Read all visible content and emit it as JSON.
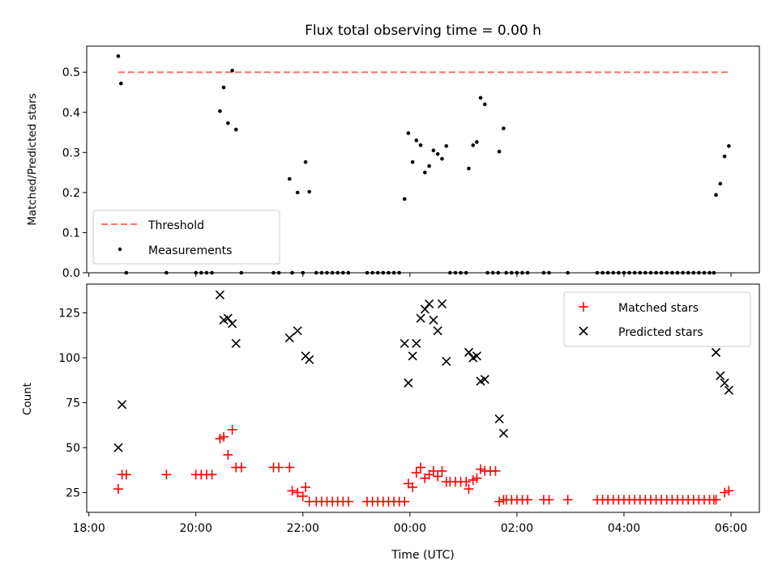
{
  "chart_data": [
    {
      "type": "scatter",
      "title": "Flux total observing time = 0.00 h",
      "xlabel": "",
      "ylabel": "Matched/Predicted stars",
      "ylim": [
        0,
        0.565
      ],
      "xlim": [
        -0.04,
        12.53
      ],
      "x_unit": "hours since 18:00 UTC",
      "yticks": [
        0.0,
        0.1,
        0.2,
        0.3,
        0.4,
        0.5
      ],
      "ytick_labels": [
        "0.0",
        "0.1",
        "0.2",
        "0.3",
        "0.4",
        "0.5"
      ],
      "xticks": [
        0,
        2,
        4,
        6,
        8,
        10,
        12
      ],
      "legend": {
        "location": "lower-left",
        "entries": [
          "Threshold",
          "Measurements"
        ]
      },
      "series": [
        {
          "name": "Threshold",
          "kind": "line",
          "style": "dashed",
          "color": "#ff7070",
          "x": [
            0.55,
            12.0
          ],
          "y": [
            0.5,
            0.5
          ]
        },
        {
          "name": "Measurements",
          "kind": "scatter",
          "color": "#000000",
          "points": [
            [
              0.55,
              0.54
            ],
            [
              0.6,
              0.472
            ],
            [
              0.7,
              0.0
            ],
            [
              1.45,
              0.0
            ],
            [
              2.0,
              0.0
            ],
            [
              2.1,
              0.0
            ],
            [
              2.2,
              0.0
            ],
            [
              2.3,
              0.0
            ],
            [
              2.45,
              0.403
            ],
            [
              2.52,
              0.462
            ],
            [
              2.6,
              0.373
            ],
            [
              2.68,
              0.504
            ],
            [
              2.75,
              0.357
            ],
            [
              2.85,
              0.0
            ],
            [
              3.45,
              0.0
            ],
            [
              3.55,
              0.0
            ],
            [
              3.75,
              0.234
            ],
            [
              3.9,
              0.2
            ],
            [
              4.05,
              0.276
            ],
            [
              4.12,
              0.202
            ],
            [
              3.8,
              0.0
            ],
            [
              4.0,
              0.0
            ],
            [
              4.25,
              0.0
            ],
            [
              4.35,
              0.0
            ],
            [
              4.45,
              0.0
            ],
            [
              4.55,
              0.0
            ],
            [
              4.65,
              0.0
            ],
            [
              4.75,
              0.0
            ],
            [
              4.85,
              0.0
            ],
            [
              5.2,
              0.0
            ],
            [
              5.3,
              0.0
            ],
            [
              5.4,
              0.0
            ],
            [
              5.5,
              0.0
            ],
            [
              5.6,
              0.0
            ],
            [
              5.7,
              0.0
            ],
            [
              5.8,
              0.0
            ],
            [
              5.9,
              0.184
            ],
            [
              5.97,
              0.348
            ],
            [
              6.05,
              0.276
            ],
            [
              6.12,
              0.33
            ],
            [
              6.2,
              0.318
            ],
            [
              6.28,
              0.25
            ],
            [
              6.36,
              0.266
            ],
            [
              6.44,
              0.305
            ],
            [
              6.52,
              0.296
            ],
            [
              6.6,
              0.284
            ],
            [
              6.68,
              0.316
            ],
            [
              6.75,
              0.0
            ],
            [
              6.85,
              0.0
            ],
            [
              6.95,
              0.0
            ],
            [
              7.05,
              0.0
            ],
            [
              7.1,
              0.26
            ],
            [
              7.18,
              0.318
            ],
            [
              7.25,
              0.326
            ],
            [
              7.32,
              0.436
            ],
            [
              7.4,
              0.42
            ],
            [
              7.45,
              0.0
            ],
            [
              7.55,
              0.0
            ],
            [
              7.65,
              0.0
            ],
            [
              7.67,
              0.302
            ],
            [
              7.75,
              0.36
            ],
            [
              7.8,
              0.0
            ],
            [
              7.9,
              0.0
            ],
            [
              8.0,
              0.0
            ],
            [
              8.1,
              0.0
            ],
            [
              8.2,
              0.0
            ],
            [
              8.5,
              0.0
            ],
            [
              8.6,
              0.0
            ],
            [
              8.95,
              0.0
            ],
            [
              9.5,
              0.0
            ],
            [
              9.6,
              0.0
            ],
            [
              9.7,
              0.0
            ],
            [
              9.8,
              0.0
            ],
            [
              9.9,
              0.0
            ],
            [
              10.0,
              0.0
            ],
            [
              10.1,
              0.0
            ],
            [
              10.2,
              0.0
            ],
            [
              10.3,
              0.0
            ],
            [
              10.4,
              0.0
            ],
            [
              10.5,
              0.0
            ],
            [
              10.6,
              0.0
            ],
            [
              10.7,
              0.0
            ],
            [
              10.8,
              0.0
            ],
            [
              10.9,
              0.0
            ],
            [
              11.0,
              0.0
            ],
            [
              11.1,
              0.0
            ],
            [
              11.2,
              0.0
            ],
            [
              11.3,
              0.0
            ],
            [
              11.4,
              0.0
            ],
            [
              11.5,
              0.0
            ],
            [
              11.6,
              0.0
            ],
            [
              11.68,
              0.0
            ],
            [
              11.72,
              0.194
            ],
            [
              11.8,
              0.222
            ],
            [
              11.88,
              0.29
            ],
            [
              11.96,
              0.316
            ]
          ]
        }
      ]
    },
    {
      "type": "scatter",
      "title": "",
      "xlabel": "Time (UTC)",
      "ylabel": "Count",
      "ylim": [
        14,
        141
      ],
      "xlim": [
        -0.04,
        12.53
      ],
      "x_unit": "hours since 18:00 UTC",
      "yticks": [
        25,
        50,
        75,
        100,
        125
      ],
      "ytick_labels": [
        "25",
        "50",
        "75",
        "100",
        "125"
      ],
      "xticks": [
        0,
        2,
        4,
        6,
        8,
        10,
        12
      ],
      "xtick_labels": [
        "18:00",
        "20:00",
        "22:00",
        "00:00",
        "02:00",
        "04:00",
        "06:00"
      ],
      "legend": {
        "location": "upper-right",
        "entries": [
          "Matched stars",
          "Predicted stars"
        ]
      },
      "series": [
        {
          "name": "Matched stars",
          "kind": "scatter",
          "marker": "plus",
          "color": "#ff0000",
          "points": [
            [
              0.55,
              27
            ],
            [
              0.62,
              35
            ],
            [
              0.7,
              35
            ],
            [
              1.45,
              35
            ],
            [
              2.0,
              35
            ],
            [
              2.1,
              35
            ],
            [
              2.2,
              35
            ],
            [
              2.3,
              35
            ],
            [
              2.45,
              55
            ],
            [
              2.52,
              56
            ],
            [
              2.6,
              46
            ],
            [
              2.68,
              60
            ],
            [
              2.75,
              39
            ],
            [
              2.85,
              39
            ],
            [
              3.45,
              39
            ],
            [
              3.55,
              39
            ],
            [
              3.75,
              39
            ],
            [
              3.8,
              26
            ],
            [
              3.9,
              25
            ],
            [
              4.0,
              23
            ],
            [
              4.05,
              28
            ],
            [
              4.12,
              20
            ],
            [
              4.25,
              20
            ],
            [
              4.35,
              20
            ],
            [
              4.45,
              20
            ],
            [
              4.55,
              20
            ],
            [
              4.65,
              20
            ],
            [
              4.75,
              20
            ],
            [
              4.85,
              20
            ],
            [
              5.2,
              20
            ],
            [
              5.3,
              20
            ],
            [
              5.4,
              20
            ],
            [
              5.5,
              20
            ],
            [
              5.6,
              20
            ],
            [
              5.7,
              20
            ],
            [
              5.8,
              20
            ],
            [
              5.9,
              20
            ],
            [
              5.97,
              30
            ],
            [
              6.05,
              28
            ],
            [
              6.12,
              36
            ],
            [
              6.2,
              39
            ],
            [
              6.28,
              33
            ],
            [
              6.36,
              35
            ],
            [
              6.44,
              37
            ],
            [
              6.52,
              34
            ],
            [
              6.6,
              37
            ],
            [
              6.68,
              31
            ],
            [
              6.75,
              31
            ],
            [
              6.85,
              31
            ],
            [
              6.95,
              31
            ],
            [
              7.05,
              31
            ],
            [
              7.1,
              27
            ],
            [
              7.18,
              32
            ],
            [
              7.25,
              33
            ],
            [
              7.32,
              38
            ],
            [
              7.4,
              37
            ],
            [
              7.5,
              37
            ],
            [
              7.6,
              37
            ],
            [
              7.67,
              20
            ],
            [
              7.75,
              21
            ],
            [
              7.8,
              21
            ],
            [
              7.9,
              21
            ],
            [
              8.0,
              21
            ],
            [
              8.1,
              21
            ],
            [
              8.2,
              21
            ],
            [
              8.5,
              21
            ],
            [
              8.6,
              21
            ],
            [
              8.95,
              21
            ],
            [
              9.5,
              21
            ],
            [
              9.6,
              21
            ],
            [
              9.7,
              21
            ],
            [
              9.8,
              21
            ],
            [
              9.9,
              21
            ],
            [
              10.0,
              21
            ],
            [
              10.1,
              21
            ],
            [
              10.2,
              21
            ],
            [
              10.3,
              21
            ],
            [
              10.4,
              21
            ],
            [
              10.5,
              21
            ],
            [
              10.6,
              21
            ],
            [
              10.7,
              21
            ],
            [
              10.8,
              21
            ],
            [
              10.9,
              21
            ],
            [
              11.0,
              21
            ],
            [
              11.1,
              21
            ],
            [
              11.2,
              21
            ],
            [
              11.3,
              21
            ],
            [
              11.4,
              21
            ],
            [
              11.5,
              21
            ],
            [
              11.6,
              21
            ],
            [
              11.68,
              21
            ],
            [
              11.72,
              21
            ],
            [
              11.88,
              25
            ],
            [
              11.96,
              26
            ]
          ]
        },
        {
          "name": "Predicted stars",
          "kind": "scatter",
          "marker": "x",
          "color": "#000000",
          "points": [
            [
              0.55,
              50
            ],
            [
              0.62,
              74
            ],
            [
              2.45,
              135
            ],
            [
              2.52,
              121
            ],
            [
              2.6,
              122
            ],
            [
              2.68,
              119
            ],
            [
              2.75,
              108
            ],
            [
              3.75,
              111
            ],
            [
              3.9,
              115
            ],
            [
              4.05,
              101
            ],
            [
              4.12,
              99
            ],
            [
              5.9,
              108
            ],
            [
              5.97,
              86
            ],
            [
              6.05,
              101
            ],
            [
              6.12,
              108
            ],
            [
              6.2,
              122
            ],
            [
              6.28,
              127
            ],
            [
              6.36,
              130
            ],
            [
              6.44,
              121
            ],
            [
              6.52,
              115
            ],
            [
              6.6,
              130
            ],
            [
              6.68,
              98
            ],
            [
              7.1,
              103
            ],
            [
              7.18,
              100
            ],
            [
              7.25,
              101
            ],
            [
              7.32,
              87
            ],
            [
              7.4,
              88
            ],
            [
              7.67,
              66
            ],
            [
              7.75,
              58
            ],
            [
              11.72,
              103
            ],
            [
              11.8,
              90
            ],
            [
              11.88,
              86
            ],
            [
              11.96,
              82
            ]
          ]
        }
      ]
    }
  ]
}
